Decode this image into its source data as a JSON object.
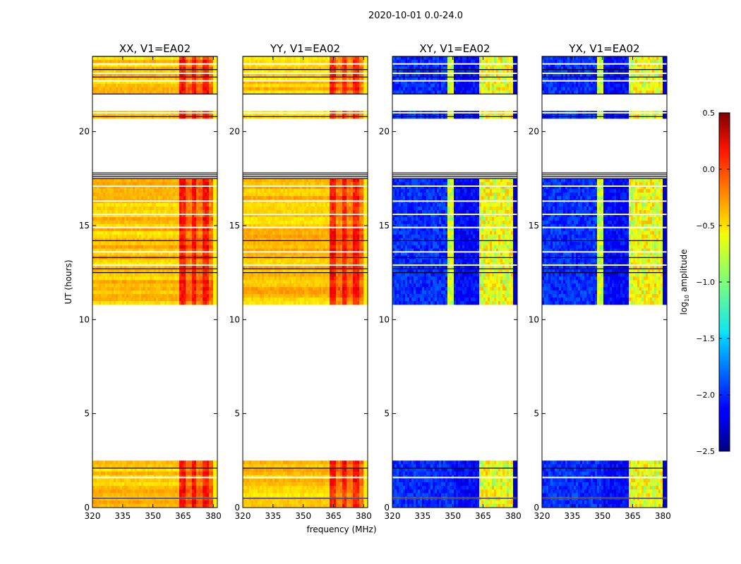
{
  "chart_data": {
    "type": "heatmap",
    "suptitle": "2020-10-01 0.0-24.0",
    "xlabel": "frequency (MHz)",
    "ylabel": "UT (hours)",
    "x_range": [
      320,
      382
    ],
    "x_ticks": [
      320,
      335,
      350,
      365,
      380
    ],
    "y_range": [
      0,
      24
    ],
    "y_ticks": [
      0,
      5,
      10,
      15,
      20
    ],
    "panels": [
      {
        "title": "XX, V1=EA02",
        "kind": "parallel"
      },
      {
        "title": "YY, V1=EA02",
        "kind": "parallel"
      },
      {
        "title": "XY, V1=EA02",
        "kind": "cross"
      },
      {
        "title": "YX, V1=EA02",
        "kind": "cross"
      }
    ],
    "data_blocks_ut": [
      {
        "start": 0.0,
        "end": 2.5
      },
      {
        "start": 10.8,
        "end": 17.5
      },
      {
        "start": 20.7,
        "end": 21.1
      },
      {
        "start": 22.0,
        "end": 24.0
      }
    ],
    "rfi_band_mhz": [
      363,
      381
    ],
    "colorbar": {
      "label": "log",
      "label_sub": "10",
      "label_rest": " amplitude",
      "min": -2.5,
      "max": 0.5,
      "ticks": [
        "0.5",
        "0.0",
        "−0.5",
        "−1.0",
        "−1.5",
        "−2.0",
        "−2.5"
      ],
      "tick_values": [
        0.5,
        0.0,
        -0.5,
        -1.0,
        -1.5,
        -2.0,
        -2.5
      ],
      "colormap": "jet"
    }
  }
}
